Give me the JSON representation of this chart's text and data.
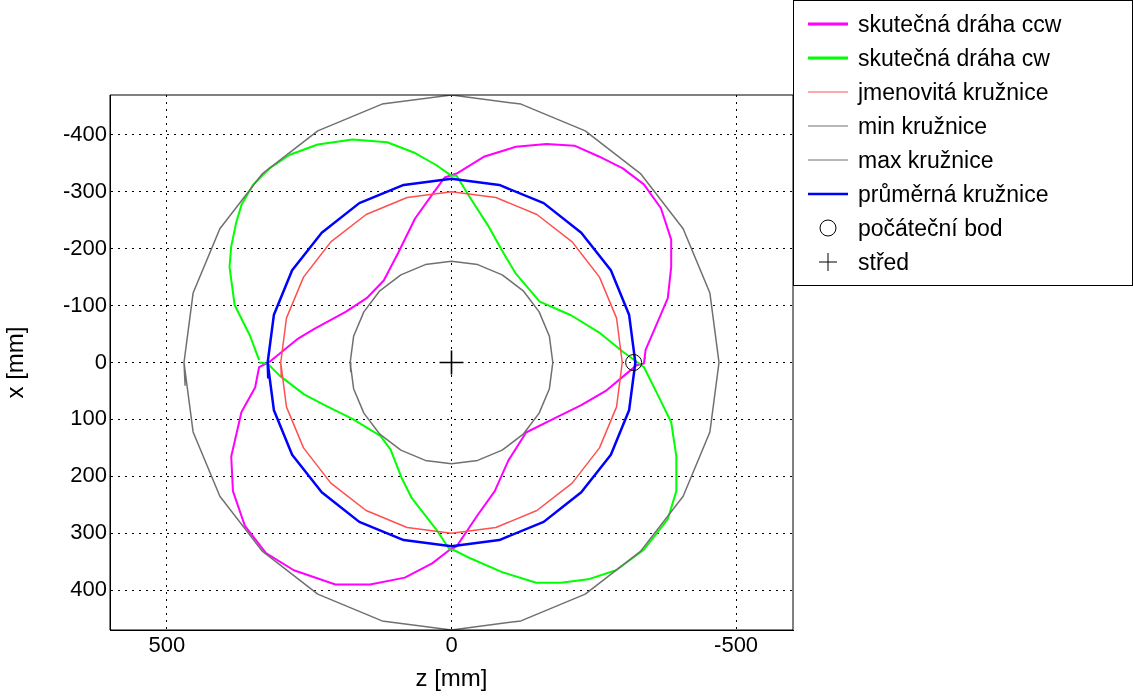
{
  "chart_data": {
    "type": "line",
    "xlabel": "z [mm]",
    "ylabel": "x [mm]",
    "xlim": [
      600,
      -600
    ],
    "ylim": [
      470,
      -470
    ],
    "xticks": [
      500,
      0,
      -500
    ],
    "yticks": [
      -400,
      -300,
      -200,
      -100,
      0,
      100,
      200,
      300,
      400
    ],
    "grid": true,
    "legend": "top right",
    "series": [
      {
        "name": "skutečná dráha ccw",
        "color": "#ff00ff",
        "x": [
          -338,
          -341,
          -362,
          -380,
          -386,
          -386,
          -368,
          -338,
          -301,
          -259,
          -216,
          -167,
          -113,
          -58,
          -9,
          12,
          34,
          64,
          94,
          119,
          149,
          186,
          241,
          271,
          320,
          338,
          345,
          369,
          387,
          384,
          363,
          326,
          277,
          204,
          143,
          82,
          34,
          3,
          -9,
          -46,
          -76,
          -100,
          -131,
          -179,
          -228,
          -271,
          -307,
          -325,
          -338,
          -340
        ],
        "values": [
          2,
          -22,
          -71,
          -113,
          -168,
          -216,
          -271,
          -313,
          -341,
          -362,
          -381,
          -384,
          -379,
          -362,
          -332,
          -325,
          -295,
          -253,
          -192,
          -144,
          -113,
          -89,
          -59,
          -41,
          -1,
          8,
          44,
          87,
          165,
          226,
          287,
          335,
          365,
          390,
          390,
          378,
          353,
          329,
          323,
          268,
          226,
          172,
          123,
          99,
          75,
          50,
          20,
          5,
          2,
          -10
        ]
      },
      {
        "name": "skutečná dráha cw",
        "color": "#00ff00",
        "x": [
          338,
          354,
          381,
          390,
          387,
          378,
          369,
          348,
          320,
          284,
          235,
          174,
          113,
          64,
          27,
          0,
          -9,
          -33,
          -64,
          -88,
          -113,
          -155,
          -210,
          -259,
          -301,
          -338,
          -362,
          -386,
          -395,
          -395,
          -380,
          -338,
          -289,
          -240,
          -192,
          -149,
          -88,
          -33,
          -3,
          3,
          27,
          70,
          88,
          107,
          125,
          174,
          223,
          259,
          302,
          323,
          338
        ],
        "values": [
          -4,
          -47,
          -101,
          -168,
          -204,
          -247,
          -277,
          -313,
          -341,
          -365,
          -383,
          -392,
          -387,
          -368,
          -347,
          -328,
          -328,
          -289,
          -241,
          -198,
          -156,
          -107,
          -83,
          -53,
          -19,
          8,
          56,
          105,
          165,
          226,
          275,
          329,
          365,
          381,
          387,
          387,
          368,
          344,
          329,
          329,
          293,
          238,
          202,
          153,
          129,
          99,
          75,
          56,
          23,
          2,
          0
        ]
      },
      {
        "name": "jmenovitá kružnice",
        "color": "#ff5050",
        "x": [
          300,
          290,
          260,
          212,
          150,
          78,
          0,
          -78,
          -150,
          -212,
          -260,
          -290,
          -300,
          -290,
          -260,
          -212,
          -150,
          -78,
          0,
          78,
          150,
          212,
          260,
          290,
          300,
          299
        ],
        "values": [
          0,
          78,
          150,
          212,
          260,
          290,
          300,
          290,
          260,
          212,
          150,
          78,
          0,
          -78,
          -150,
          -212,
          -260,
          -290,
          -300,
          -290,
          -260,
          -212,
          -150,
          -78,
          0,
          26
        ]
      },
      {
        "name": "min kružnice",
        "color": "#707070",
        "x": [
          178,
          172,
          154,
          126,
          89,
          46,
          0,
          -46,
          -89,
          -126,
          -154,
          -172,
          -178,
          -172,
          -154,
          -126,
          -89,
          -46,
          0,
          46,
          89,
          126,
          154,
          172,
          178,
          177
        ],
        "values": [
          0,
          46,
          89,
          126,
          154,
          172,
          178,
          172,
          154,
          126,
          89,
          46,
          0,
          -46,
          -89,
          -126,
          -154,
          -172,
          -178,
          -172,
          -154,
          -126,
          -89,
          -46,
          0,
          16
        ]
      },
      {
        "name": "max kružnice",
        "color": "#707070",
        "x": [
          470,
          454,
          407,
          332,
          235,
          122,
          0,
          -122,
          -235,
          -332,
          -407,
          -454,
          -470,
          -454,
          -407,
          -332,
          -235,
          -122,
          0,
          122,
          235,
          332,
          407,
          454,
          470,
          468
        ],
        "values": [
          0,
          122,
          235,
          332,
          407,
          454,
          470,
          454,
          407,
          332,
          235,
          122,
          0,
          -122,
          -235,
          -332,
          -407,
          -454,
          -470,
          -454,
          -407,
          -332,
          -235,
          -122,
          0,
          41
        ]
      },
      {
        "name": "průměrná kružnice",
        "color": "#0000ff",
        "x": [
          323,
          312,
          280,
          228,
          162,
          84,
          0,
          -84,
          -162,
          -228,
          -280,
          -312,
          -323,
          -312,
          -280,
          -228,
          -162,
          -84,
          0,
          84,
          162,
          228,
          280,
          312,
          323,
          322
        ],
        "values": [
          0,
          84,
          162,
          228,
          280,
          312,
          323,
          312,
          280,
          228,
          162,
          84,
          0,
          -84,
          -162,
          -228,
          -280,
          -312,
          -323,
          -312,
          -280,
          -228,
          -162,
          -84,
          0,
          28
        ]
      },
      {
        "name": "počáteční bod",
        "type": "scatter",
        "marker": "circle",
        "color": "#000000",
        "x": [
          -320
        ],
        "values": [
          0
        ]
      },
      {
        "name": "střed",
        "type": "scatter",
        "marker": "cross",
        "color": "#000000",
        "x": [
          0
        ],
        "values": [
          0
        ]
      }
    ]
  }
}
